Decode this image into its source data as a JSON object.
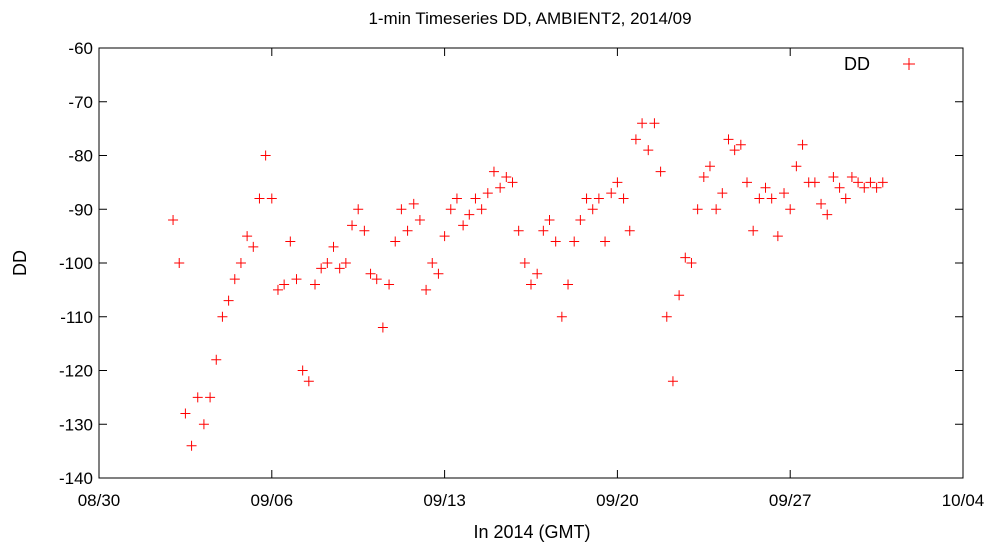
{
  "chart_data": {
    "type": "scatter",
    "title": "1-min Timeseries DD, AMBIENT2, 2014/09",
    "xlabel": "In 2014 (GMT)",
    "ylabel": "DD",
    "x_ticks": [
      "08/30",
      "09/06",
      "09/13",
      "09/20",
      "09/27",
      "10/04"
    ],
    "xlim": [
      "2014-08-30",
      "2014-10-04"
    ],
    "ylim": [
      -140,
      -60
    ],
    "y_ticks": [
      -60,
      -70,
      -80,
      -90,
      -100,
      -110,
      -120,
      -130,
      -140
    ],
    "legend": {
      "position": "top-right",
      "entries": [
        "DD"
      ]
    },
    "marker": "+",
    "color": "#ff0000",
    "series": [
      {
        "name": "DD",
        "x": [
          "2014-09-02 00:00",
          "2014-09-02 06:00",
          "2014-09-02 12:00",
          "2014-09-02 18:00",
          "2014-09-03 00:00",
          "2014-09-03 06:00",
          "2014-09-03 12:00",
          "2014-09-03 18:00",
          "2014-09-04 00:00",
          "2014-09-04 06:00",
          "2014-09-04 12:00",
          "2014-09-04 18:00",
          "2014-09-05 00:00",
          "2014-09-05 06:00",
          "2014-09-05 12:00",
          "2014-09-05 18:00",
          "2014-09-06 00:00",
          "2014-09-06 06:00",
          "2014-09-06 12:00",
          "2014-09-06 18:00",
          "2014-09-07 00:00",
          "2014-09-07 06:00",
          "2014-09-07 12:00",
          "2014-09-07 18:00",
          "2014-09-08 00:00",
          "2014-09-08 06:00",
          "2014-09-08 12:00",
          "2014-09-08 18:00",
          "2014-09-09 00:00",
          "2014-09-09 06:00",
          "2014-09-09 12:00",
          "2014-09-09 18:00",
          "2014-09-10 00:00",
          "2014-09-10 06:00",
          "2014-09-10 12:00",
          "2014-09-10 18:00",
          "2014-09-11 00:00",
          "2014-09-11 06:00",
          "2014-09-11 12:00",
          "2014-09-11 18:00",
          "2014-09-12 00:00",
          "2014-09-12 06:00",
          "2014-09-12 12:00",
          "2014-09-12 18:00",
          "2014-09-13 00:00",
          "2014-09-13 06:00",
          "2014-09-13 12:00",
          "2014-09-13 18:00",
          "2014-09-14 00:00",
          "2014-09-14 06:00",
          "2014-09-14 12:00",
          "2014-09-14 18:00",
          "2014-09-15 00:00",
          "2014-09-15 06:00",
          "2014-09-15 12:00",
          "2014-09-15 18:00",
          "2014-09-16 00:00",
          "2014-09-16 06:00",
          "2014-09-16 12:00",
          "2014-09-16 18:00",
          "2014-09-17 00:00",
          "2014-09-17 06:00",
          "2014-09-17 12:00",
          "2014-09-17 18:00",
          "2014-09-18 00:00",
          "2014-09-18 06:00",
          "2014-09-18 12:00",
          "2014-09-18 18:00",
          "2014-09-19 00:00",
          "2014-09-19 06:00",
          "2014-09-19 12:00",
          "2014-09-19 18:00",
          "2014-09-20 00:00",
          "2014-09-20 06:00",
          "2014-09-20 12:00",
          "2014-09-20 18:00",
          "2014-09-21 00:00",
          "2014-09-21 06:00",
          "2014-09-21 12:00",
          "2014-09-21 18:00",
          "2014-09-22 00:00",
          "2014-09-22 06:00",
          "2014-09-22 12:00",
          "2014-09-22 18:00",
          "2014-09-23 00:00",
          "2014-09-23 06:00",
          "2014-09-23 12:00",
          "2014-09-23 18:00",
          "2014-09-24 00:00",
          "2014-09-24 06:00",
          "2014-09-24 12:00",
          "2014-09-24 18:00",
          "2014-09-25 00:00",
          "2014-09-25 06:00",
          "2014-09-25 12:00",
          "2014-09-25 18:00",
          "2014-09-26 00:00",
          "2014-09-26 06:00",
          "2014-09-26 12:00",
          "2014-09-26 18:00",
          "2014-09-27 00:00",
          "2014-09-27 06:00",
          "2014-09-27 12:00",
          "2014-09-27 18:00",
          "2014-09-28 00:00",
          "2014-09-28 06:00",
          "2014-09-28 12:00",
          "2014-09-28 18:00",
          "2014-09-29 00:00",
          "2014-09-29 06:00",
          "2014-09-29 12:00",
          "2014-09-29 18:00",
          "2014-09-30 00:00",
          "2014-09-30 06:00",
          "2014-09-30 12:00",
          "2014-09-30 18:00"
        ],
        "y": [
          -92,
          -100,
          -128,
          -134,
          -125,
          -130,
          -125,
          -118,
          -110,
          -107,
          -103,
          -100,
          -95,
          -97,
          -88,
          -80,
          -88,
          -105,
          -104,
          -96,
          -103,
          -120,
          -122,
          -104,
          -101,
          -100,
          -97,
          -101,
          -100,
          -93,
          -90,
          -94,
          -102,
          -103,
          -112,
          -104,
          -96,
          -90,
          -94,
          -89,
          -92,
          -105,
          -100,
          -102,
          -95,
          -90,
          -88,
          -93,
          -91,
          -88,
          -90,
          -87,
          -83,
          -86,
          -84,
          -85,
          -94,
          -100,
          -104,
          -102,
          -94,
          -92,
          -96,
          -110,
          -104,
          -96,
          -92,
          -88,
          -90,
          -88,
          -96,
          -87,
          -85,
          -88,
          -94,
          -77,
          -74,
          -79,
          -74,
          -83,
          -110,
          -122,
          -106,
          -99,
          -100,
          -90,
          -84,
          -82,
          -90,
          -87,
          -77,
          -79,
          -78,
          -85,
          -94,
          -88,
          -86,
          -88,
          -95,
          -87,
          -90,
          -82,
          -78,
          -85,
          -85,
          -89,
          -91,
          -84,
          -86,
          -88,
          -84,
          -85,
          -86,
          -85,
          -86,
          -85
        ]
      }
    ]
  }
}
